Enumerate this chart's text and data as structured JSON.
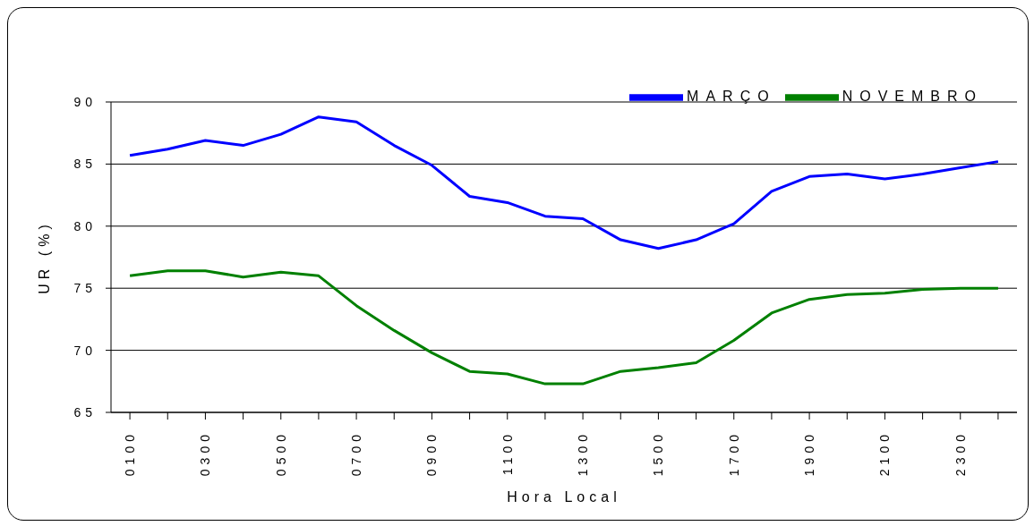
{
  "chart_data": {
    "type": "line",
    "xlabel": "Hora Local",
    "ylabel": "UR (%)",
    "categories": [
      "0100",
      null,
      "0300",
      null,
      "0500",
      null,
      "0700",
      null,
      "0900",
      null,
      "1100",
      null,
      "1300",
      null,
      "1500",
      null,
      "1700",
      null,
      "1900",
      null,
      "2100",
      null,
      "2300",
      null
    ],
    "series": [
      {
        "name": "MARÇO",
        "color": "#0000ff",
        "values": [
          85.7,
          86.2,
          86.9,
          86.5,
          87.4,
          88.8,
          88.4,
          86.5,
          84.9,
          82.4,
          81.9,
          80.8,
          80.6,
          78.9,
          78.2,
          78.9,
          80.2,
          82.8,
          84.0,
          84.2,
          83.8,
          84.2,
          84.7,
          85.2
        ]
      },
      {
        "name": "NOVEMBRO",
        "color": "#008000",
        "values": [
          76.0,
          76.4,
          76.4,
          75.9,
          76.3,
          76.0,
          73.6,
          71.6,
          69.8,
          68.3,
          68.1,
          67.3,
          67.3,
          68.3,
          68.6,
          69.0,
          70.8,
          73.0,
          74.1,
          74.5,
          74.6,
          74.9,
          75.0,
          75.0
        ]
      }
    ],
    "ylim": [
      65,
      90
    ],
    "yticks": [
      65,
      70,
      75,
      80,
      85,
      90
    ],
    "grid": "y",
    "legend": "top right",
    "marker": "none",
    "line_style": "solid"
  }
}
